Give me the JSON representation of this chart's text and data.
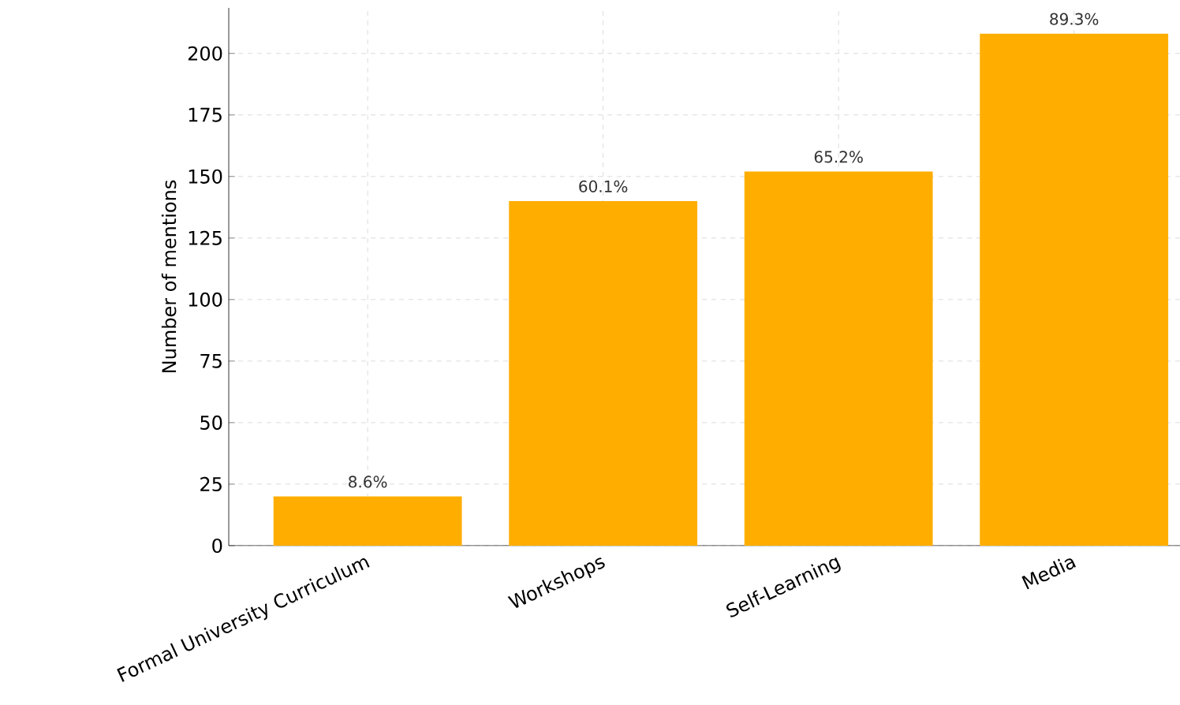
{
  "chart_data": {
    "type": "bar",
    "ylabel": "Number of mentions",
    "categories": [
      "Formal University Curriculum",
      "Workshops",
      "Self-Learning",
      "Media"
    ],
    "values": [
      20,
      140,
      152,
      208
    ],
    "annotations": [
      {
        "text": "8.6%",
        "x": "Formal University Curriculum",
        "y": 20
      },
      {
        "text": "60.1%",
        "x": "Workshops",
        "y": 140
      },
      {
        "text": "65.2%",
        "x": "Self-Learning",
        "y": 152
      },
      {
        "text": "89.3%",
        "x": "Media",
        "y": 208
      }
    ],
    "color": "#ffae00",
    "ylim": [
      0,
      218.5
    ],
    "yticks": [
      0,
      25,
      50,
      75,
      100,
      125,
      150,
      175,
      200
    ],
    "grid": true
  }
}
